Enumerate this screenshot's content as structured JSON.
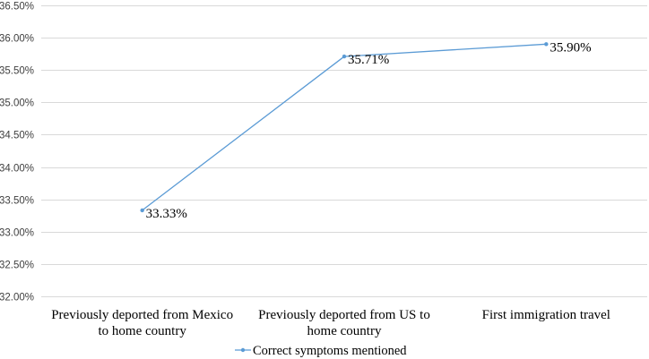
{
  "chart_data": {
    "type": "line",
    "title": "",
    "xlabel": "",
    "ylabel": "",
    "categories": [
      [
        "Previously deported from Mexico",
        "to home country"
      ],
      [
        "Previously deported from US to",
        "home country"
      ],
      [
        "First immigration travel"
      ]
    ],
    "series": [
      {
        "name": "Correct symptoms mentioned",
        "values": [
          33.33,
          35.71,
          35.9
        ],
        "labels": [
          "33.33%",
          "35.71%",
          "35.90%"
        ],
        "color": "#5b9bd5"
      }
    ],
    "ylim": [
      32.0,
      36.5
    ],
    "yticks": [
      "32.00%",
      "32.50%",
      "33.00%",
      "33.50%",
      "34.00%",
      "34.50%",
      "35.00%",
      "35.50%",
      "36.00%",
      "36.50%"
    ],
    "ytick_values": [
      32.0,
      32.5,
      33.0,
      33.5,
      34.0,
      34.5,
      35.0,
      35.5,
      36.0,
      36.5
    ],
    "grid": true,
    "legend_position": "bottom"
  }
}
